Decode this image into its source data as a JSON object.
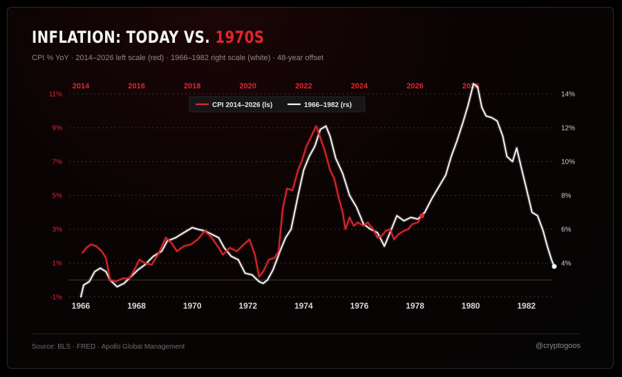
{
  "header": {
    "title_main": "INFLATION: TODAY VS. ",
    "title_accent": "1970S",
    "subtitle": "CPI % YoY · 2014–2026 left scale (red) · 1966–1982 right scale (white) · 48-year offset"
  },
  "footer": {
    "source": "Source: BLS · FRED · Apollo Global Management",
    "handle": "@cryptogoos"
  },
  "colors": {
    "red": "#e0262e",
    "white": "#f5f5f5",
    "grid": "#3a3a3a",
    "background": "#050505"
  },
  "chart_data": {
    "type": "line",
    "grid": true,
    "legend_position": "top-center",
    "x_bottom": {
      "ticks": [
        "1966",
        "1968",
        "1970",
        "1972",
        "1974",
        "1976",
        "1978",
        "1980",
        "1982"
      ],
      "range": [
        1966,
        1983
      ]
    },
    "x_top": {
      "ticks": [
        "2014",
        "2016",
        "2018",
        "2020",
        "2022",
        "2024",
        "2026",
        "2028"
      ],
      "range": [
        2014,
        2031
      ]
    },
    "y_left": {
      "ticks": [
        "11%",
        "9%",
        "7%",
        "5%",
        "3%",
        "1%",
        "-1%"
      ],
      "range": [
        -1,
        11
      ]
    },
    "y_right": {
      "ticks": [
        "14%",
        "12%",
        "10%",
        "8%",
        "6%",
        "4%"
      ],
      "range": [
        2.0,
        14.0
      ]
    },
    "series": [
      {
        "name": "CPI 2014–2026 (ls)",
        "color": "#e0262e",
        "axis": "left-top",
        "points": [
          [
            2014.05,
            1.6
          ],
          [
            2014.2,
            1.9
          ],
          [
            2014.35,
            2.1
          ],
          [
            2014.55,
            2.0
          ],
          [
            2014.75,
            1.7
          ],
          [
            2014.9,
            1.3
          ],
          [
            2015.05,
            0.0
          ],
          [
            2015.25,
            -0.1
          ],
          [
            2015.5,
            0.1
          ],
          [
            2015.75,
            0.1
          ],
          [
            2015.95,
            0.7
          ],
          [
            2016.1,
            1.2
          ],
          [
            2016.3,
            1.0
          ],
          [
            2016.55,
            0.9
          ],
          [
            2016.8,
            1.6
          ],
          [
            2017.05,
            2.5
          ],
          [
            2017.25,
            2.2
          ],
          [
            2017.45,
            1.7
          ],
          [
            2017.7,
            2.0
          ],
          [
            2017.95,
            2.1
          ],
          [
            2018.2,
            2.4
          ],
          [
            2018.45,
            2.9
          ],
          [
            2018.7,
            2.5
          ],
          [
            2018.95,
            1.9
          ],
          [
            2019.1,
            1.5
          ],
          [
            2019.35,
            1.9
          ],
          [
            2019.6,
            1.7
          ],
          [
            2019.85,
            2.1
          ],
          [
            2020.05,
            2.4
          ],
          [
            2020.25,
            1.5
          ],
          [
            2020.4,
            0.2
          ],
          [
            2020.55,
            0.5
          ],
          [
            2020.75,
            1.2
          ],
          [
            2020.95,
            1.3
          ],
          [
            2021.1,
            1.7
          ],
          [
            2021.25,
            4.2
          ],
          [
            2021.4,
            5.4
          ],
          [
            2021.6,
            5.3
          ],
          [
            2021.8,
            6.5
          ],
          [
            2021.95,
            7.1
          ],
          [
            2022.1,
            7.9
          ],
          [
            2022.25,
            8.4
          ],
          [
            2022.45,
            9.1
          ],
          [
            2022.6,
            8.4
          ],
          [
            2022.75,
            7.7
          ],
          [
            2022.95,
            6.5
          ],
          [
            2023.1,
            6.0
          ],
          [
            2023.25,
            4.9
          ],
          [
            2023.4,
            4.0
          ],
          [
            2023.5,
            3.0
          ],
          [
            2023.65,
            3.7
          ],
          [
            2023.8,
            3.2
          ],
          [
            2023.95,
            3.4
          ],
          [
            2024.15,
            3.2
          ],
          [
            2024.3,
            3.4
          ],
          [
            2024.5,
            3.0
          ],
          [
            2024.65,
            2.5
          ],
          [
            2024.8,
            2.6
          ],
          [
            2024.95,
            2.9
          ],
          [
            2025.1,
            3.0
          ],
          [
            2025.25,
            2.4
          ],
          [
            2025.4,
            2.7
          ],
          [
            2025.6,
            2.9
          ],
          [
            2025.75,
            3.0
          ],
          [
            2025.9,
            3.3
          ],
          [
            2026.1,
            3.4
          ],
          [
            2026.25,
            3.8
          ]
        ],
        "endpoint": [
          2026.25,
          3.8
        ]
      },
      {
        "name": "1966–1982 (rs)",
        "color": "#f5f5f5",
        "axis": "right-bottom",
        "points": [
          [
            1966.0,
            2.0
          ],
          [
            1966.1,
            2.7
          ],
          [
            1966.3,
            2.9
          ],
          [
            1966.5,
            3.5
          ],
          [
            1966.7,
            3.7
          ],
          [
            1966.9,
            3.5
          ],
          [
            1967.05,
            3.0
          ],
          [
            1967.3,
            2.6
          ],
          [
            1967.55,
            2.8
          ],
          [
            1967.8,
            3.2
          ],
          [
            1968.05,
            3.6
          ],
          [
            1968.3,
            3.9
          ],
          [
            1968.6,
            4.4
          ],
          [
            1968.9,
            4.7
          ],
          [
            1969.1,
            5.3
          ],
          [
            1969.4,
            5.5
          ],
          [
            1969.7,
            5.8
          ],
          [
            1970.0,
            6.1
          ],
          [
            1970.2,
            6.0
          ],
          [
            1970.45,
            5.9
          ],
          [
            1970.7,
            5.7
          ],
          [
            1970.95,
            5.5
          ],
          [
            1971.15,
            4.9
          ],
          [
            1971.4,
            4.4
          ],
          [
            1971.65,
            4.2
          ],
          [
            1971.9,
            3.4
          ],
          [
            1972.15,
            3.3
          ],
          [
            1972.4,
            2.9
          ],
          [
            1972.55,
            2.8
          ],
          [
            1972.7,
            3.0
          ],
          [
            1972.9,
            3.6
          ],
          [
            1973.15,
            4.7
          ],
          [
            1973.35,
            5.5
          ],
          [
            1973.55,
            6.0
          ],
          [
            1973.8,
            8.0
          ],
          [
            1974.0,
            9.5
          ],
          [
            1974.2,
            10.3
          ],
          [
            1974.4,
            10.9
          ],
          [
            1974.6,
            11.9
          ],
          [
            1974.8,
            12.1
          ],
          [
            1974.95,
            11.5
          ],
          [
            1975.15,
            10.2
          ],
          [
            1975.4,
            9.3
          ],
          [
            1975.65,
            8.0
          ],
          [
            1975.9,
            7.3
          ],
          [
            1976.15,
            6.3
          ],
          [
            1976.4,
            6.0
          ],
          [
            1976.65,
            5.8
          ],
          [
            1976.9,
            5.0
          ],
          [
            1977.1,
            5.8
          ],
          [
            1977.35,
            6.8
          ],
          [
            1977.6,
            6.5
          ],
          [
            1977.85,
            6.7
          ],
          [
            1978.1,
            6.6
          ],
          [
            1978.35,
            7.0
          ],
          [
            1978.6,
            7.8
          ],
          [
            1978.85,
            8.5
          ],
          [
            1979.1,
            9.2
          ],
          [
            1979.3,
            10.3
          ],
          [
            1979.5,
            11.2
          ],
          [
            1979.7,
            12.2
          ],
          [
            1979.9,
            13.3
          ],
          [
            1980.1,
            14.6
          ],
          [
            1980.25,
            14.4
          ],
          [
            1980.4,
            13.2
          ],
          [
            1980.55,
            12.7
          ],
          [
            1980.75,
            12.6
          ],
          [
            1980.95,
            12.4
          ],
          [
            1981.15,
            11.5
          ],
          [
            1981.3,
            10.3
          ],
          [
            1981.5,
            10.0
          ],
          [
            1981.65,
            10.8
          ],
          [
            1981.85,
            9.4
          ],
          [
            1982.0,
            8.4
          ],
          [
            1982.2,
            7.0
          ],
          [
            1982.4,
            6.8
          ],
          [
            1982.6,
            5.9
          ],
          [
            1982.75,
            5.0
          ],
          [
            1982.9,
            4.2
          ],
          [
            1983.0,
            3.8
          ]
        ],
        "endpoint": [
          1983.0,
          3.8
        ]
      }
    ]
  }
}
